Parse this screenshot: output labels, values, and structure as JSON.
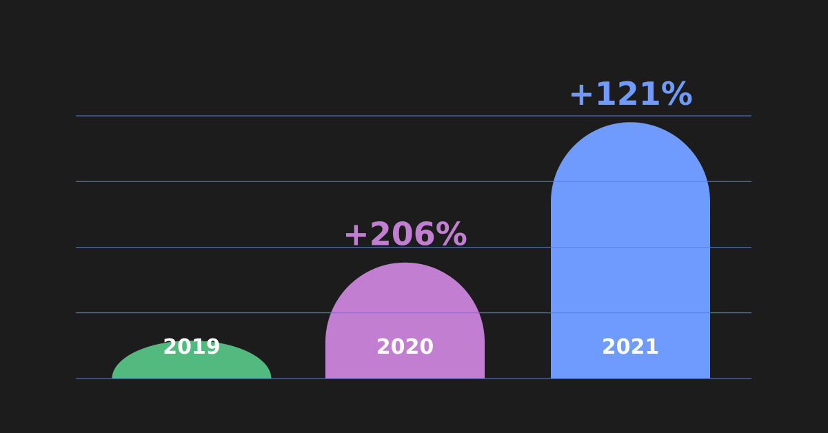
{
  "chart_data": {
    "type": "bar",
    "title": "",
    "xlabel": "",
    "ylabel": "",
    "categories": [
      "2019",
      "2020",
      "2021"
    ],
    "values": [
      1,
      3.06,
      6.76
    ],
    "data_labels": [
      "",
      "+206%",
      "+121%"
    ],
    "colors": [
      "#52ba7e",
      "#c27fd2",
      "#6e9bfd"
    ],
    "gridline_color": "#5b7fe0",
    "background": "#1c1c1c",
    "ylim": [
      0,
      8.4
    ],
    "grid": true,
    "legend": "none"
  }
}
